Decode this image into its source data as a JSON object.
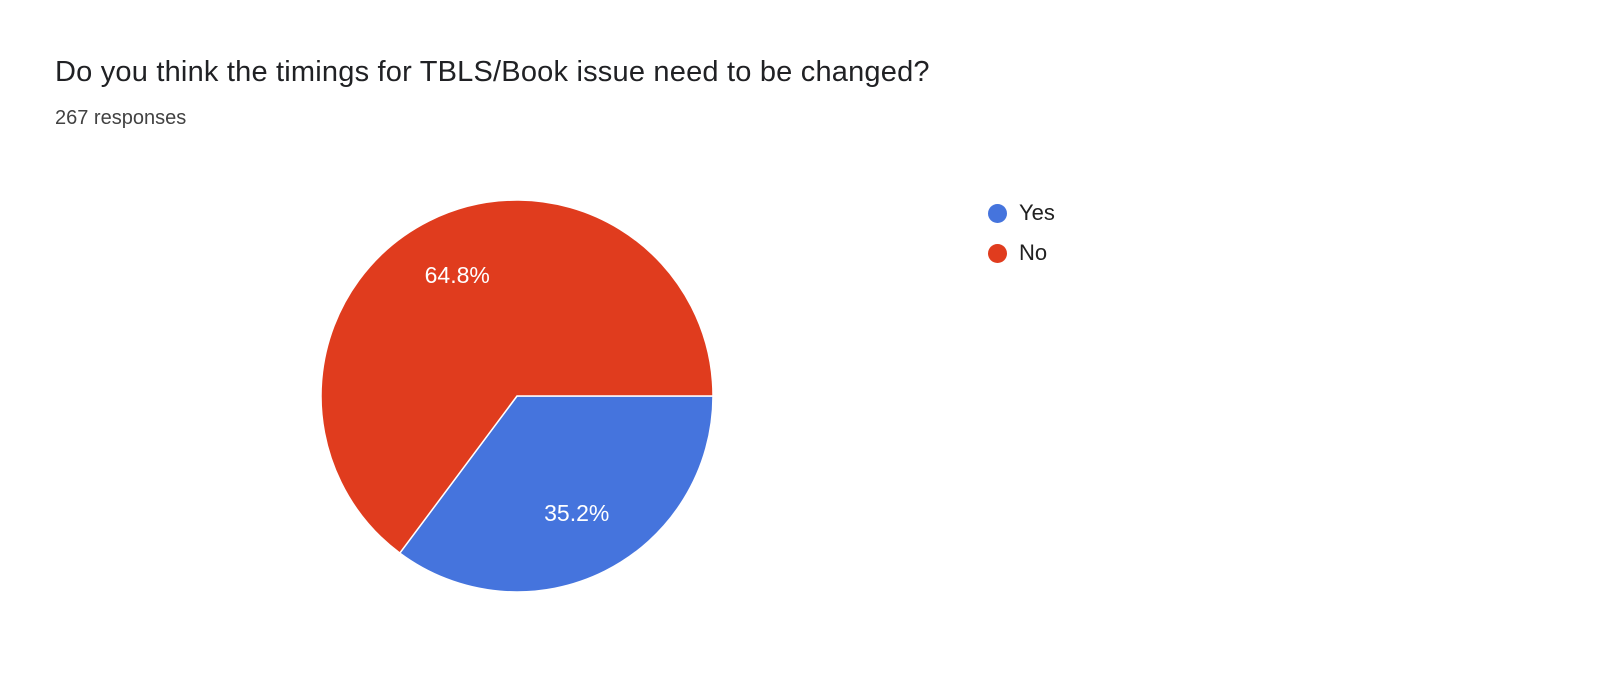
{
  "header": {
    "title": "Do you think the timings for TBLS/Book issue need to be changed?",
    "responses": "267 responses"
  },
  "chart_data": {
    "type": "pie",
    "title": "Do you think the timings for TBLS/Book issue need to be changed?",
    "subtitle": "267 responses",
    "total_responses": 267,
    "categories": [
      "Yes",
      "No"
    ],
    "values": [
      35.2,
      64.8
    ],
    "slice_labels": [
      "35.2%",
      "64.8%"
    ],
    "colors": [
      "#4574dd",
      "#e03c1e"
    ],
    "start_angle_deg": 0,
    "direction": "clockwise",
    "legend_position": "right",
    "label_color": "#ffffff"
  },
  "legend": {
    "items": [
      {
        "label": "Yes",
        "color": "#4574dd"
      },
      {
        "label": "No",
        "color": "#e03c1e"
      }
    ]
  }
}
